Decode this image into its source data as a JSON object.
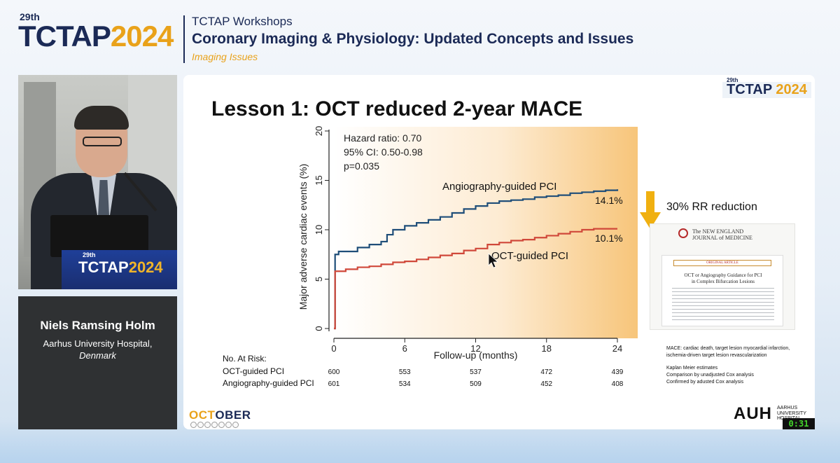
{
  "header": {
    "logo_edition": "29th",
    "logo_part1": "TCTAP",
    "logo_part2": "2024",
    "workshop": "TCTAP Workshops",
    "title": "Coronary Imaging & Physiology: Updated Concepts and Issues",
    "topic": "Imaging Issues"
  },
  "speaker": {
    "name": "Niels Ramsing Holm",
    "affiliation": "Aarhus University Hospital,",
    "country": "Denmark",
    "podium_edition": "29th",
    "podium_part1": "TCTAP",
    "podium_part2": "2024"
  },
  "slide": {
    "logo_edition": "29th",
    "logo_part1": "TCTAP ",
    "logo_part2": "2024",
    "title": "Lesson 1: OCT reduced 2-year MACE",
    "rr_text": "30% RR reduction",
    "nejm_line1": "The NEW ENGLAND",
    "nejm_line2": "JOURNAL of MEDICINE",
    "nejm_original": "ORIGINAL ARTICLE",
    "nejm_title1": "OCT or Angiography Guidance for PCI",
    "nejm_title2": "in Complex Bifurcation Lesions",
    "notes": [
      "MACE: cardiac death, target lesion myocardial infarction,",
      "ischemia-driven target lesion revascularization",
      "Kaplan Meier estimates",
      "Comparison by unadjusted Cox analysis",
      "Confirmed by adusted Cox analysis"
    ],
    "trial_logo_part1": "OCT",
    "trial_logo_part2": "OBER",
    "hospital_logo": "AUH",
    "hospital_sub1": "AARHUS",
    "hospital_sub2": "UNIVERSITY HOSPITAL"
  },
  "timer": "0:31",
  "colors": {
    "navy": "#1b2a56",
    "gold": "#e9a21a",
    "oct_line": "#d0483a",
    "angio_line": "#1f4e79"
  },
  "chart_data": {
    "type": "line",
    "title": "",
    "xlabel": "Follow-up (months)",
    "ylabel": "Major adverse cardiac events (%)",
    "xlim": [
      0,
      24
    ],
    "ylim": [
      0,
      20
    ],
    "xticks": [
      0,
      6,
      12,
      18,
      24
    ],
    "yticks": [
      0,
      5,
      10,
      15,
      20
    ],
    "annotation_lines": [
      "Hazard ratio: 0.70",
      "95% CI: 0.50-0.98",
      "p=0.035"
    ],
    "series": [
      {
        "name": "Angiography-guided PCI",
        "end_label": "14.1%",
        "x": [
          0,
          0.1,
          0.4,
          1,
          2,
          3,
          4,
          4.5,
          5,
          6,
          7,
          8,
          9,
          10,
          11,
          12,
          13,
          14,
          15,
          16,
          17,
          18,
          19,
          20,
          21,
          22,
          23,
          24
        ],
        "y": [
          0,
          7.5,
          7.8,
          7.8,
          8.2,
          8.5,
          8.8,
          9.5,
          10.0,
          10.4,
          10.7,
          11.0,
          11.3,
          11.7,
          12.1,
          12.4,
          12.7,
          12.9,
          13.0,
          13.1,
          13.3,
          13.4,
          13.5,
          13.7,
          13.8,
          13.9,
          14.0,
          14.1
        ]
      },
      {
        "name": "OCT-guided PCI",
        "end_label": "10.1%",
        "x": [
          0,
          0.1,
          0.4,
          1,
          2,
          3,
          4,
          5,
          6,
          7,
          8,
          9,
          10,
          11,
          12,
          13,
          14,
          15,
          16,
          17,
          18,
          19,
          20,
          21,
          22,
          23,
          24
        ],
        "y": [
          0,
          5.8,
          5.8,
          6.0,
          6.2,
          6.3,
          6.5,
          6.7,
          6.8,
          7.0,
          7.2,
          7.4,
          7.6,
          7.9,
          8.1,
          8.5,
          8.7,
          8.9,
          9.0,
          9.2,
          9.4,
          9.6,
          9.8,
          10.0,
          10.1,
          10.1,
          10.1
        ]
      }
    ],
    "at_risk": {
      "title": "No. At Risk:",
      "times": [
        0,
        6,
        12,
        18,
        24
      ],
      "rows": [
        {
          "label": "OCT-guided PCI",
          "values": [
            "600",
            "553",
            "537",
            "472",
            "439"
          ]
        },
        {
          "label": "Angiography-guided PCI",
          "values": [
            "601",
            "534",
            "509",
            "452",
            "408"
          ]
        }
      ]
    }
  }
}
